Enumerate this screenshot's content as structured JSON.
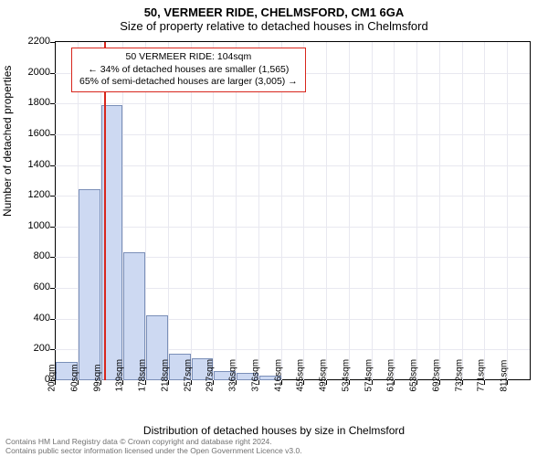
{
  "chart": {
    "type": "histogram",
    "title_line1": "50, VERMEER RIDE, CHELMSFORD, CM1 6GA",
    "title_line2": "Size of property relative to detached houses in Chelmsford",
    "ylabel": "Number of detached properties",
    "xlabel": "Distribution of detached houses by size in Chelmsford",
    "background_color": "#ffffff",
    "grid_color": "#e8e8f0",
    "bar_fill": "#cdd9f2",
    "bar_border": "#7a8fb8",
    "marker_line_color": "#d8261c",
    "axis_color": "#000000",
    "ylim": [
      0,
      2200
    ],
    "yticks": [
      0,
      200,
      400,
      600,
      800,
      1000,
      1200,
      1400,
      1600,
      1800,
      2000,
      2200
    ],
    "xticks": [
      "20sqm",
      "60sqm",
      "99sqm",
      "139sqm",
      "178sqm",
      "218sqm",
      "257sqm",
      "297sqm",
      "336sqm",
      "376sqm",
      "416sqm",
      "455sqm",
      "495sqm",
      "534sqm",
      "574sqm",
      "613sqm",
      "653sqm",
      "692sqm",
      "732sqm",
      "771sqm",
      "811sqm"
    ],
    "bars": [
      120,
      1240,
      1790,
      830,
      420,
      170,
      140,
      60,
      50,
      30,
      0,
      0,
      0,
      0,
      0,
      0,
      0,
      0,
      0,
      0,
      0
    ],
    "marker_position_bin": 2.2,
    "info_box": {
      "line1": "50 VERMEER RIDE: 104sqm",
      "line2": "← 34% of detached houses are smaller (1,565)",
      "line3": "65% of semi-detached houses are larger (3,005) →"
    },
    "attribution_line1": "Contains HM Land Registry data © Crown copyright and database right 2024.",
    "attribution_line2": "Contains public sector information licensed under the Open Government Licence v3.0.",
    "label_fontsize": 12,
    "tick_fontsize": 11
  }
}
